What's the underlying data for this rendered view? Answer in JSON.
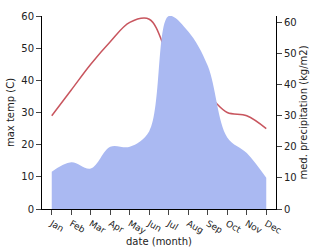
{
  "chart_data": {
    "type": "line",
    "x_label": "date (month)",
    "y_label": "max temp (C)",
    "y2_label": "med. precipitation (kg/m2)",
    "categories": [
      "Jan",
      "Feb",
      "Mar",
      "Apr",
      "May",
      "Jun",
      "Jul",
      "Aug",
      "Sep",
      "Oct",
      "Nov",
      "Dec"
    ],
    "series": [
      {
        "name": "med. precipitation",
        "type": "area",
        "axis": "y2",
        "color": "#aab9f2",
        "values": [
          12,
          15,
          13,
          20,
          20,
          25,
          62,
          57,
          46,
          23,
          18,
          10
        ]
      },
      {
        "name": "max temp",
        "type": "line",
        "color": "#c8555e",
        "values": [
          29,
          37,
          45,
          52,
          58,
          59,
          47,
          36,
          35,
          30,
          29,
          25
        ]
      }
    ],
    "ylim": [
      0,
      60
    ],
    "yticks": [
      0,
      10,
      20,
      30,
      40,
      50,
      60
    ],
    "y2lim": [
      0,
      62
    ],
    "y2ticks": [
      0,
      10,
      20,
      30,
      40,
      50,
      60
    ],
    "grid": false
  }
}
